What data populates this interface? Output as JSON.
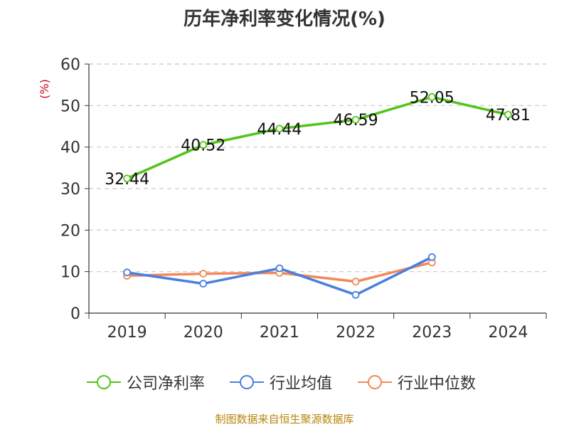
{
  "chart_data": {
    "type": "line",
    "title": "历年净利率变化情况(%)",
    "ylabel": "(%)",
    "xlabel": "",
    "categories": [
      "2019",
      "2020",
      "2021",
      "2022",
      "2023",
      "2024"
    ],
    "ylim": [
      0,
      60
    ],
    "yticks": [
      0,
      10,
      20,
      30,
      40,
      50,
      60
    ],
    "grid": true,
    "legend_position": "bottom",
    "series": [
      {
        "name": "公司净利率",
        "color": "#52c41a",
        "values": [
          32.44,
          40.52,
          44.44,
          46.59,
          52.05,
          47.81
        ],
        "labels": [
          "32.44",
          "40.52",
          "44.44",
          "46.59",
          "52.05",
          "47.81"
        ]
      },
      {
        "name": "行业均值",
        "color": "#4a7fe0",
        "values": [
          9.8,
          7.1,
          10.8,
          4.4,
          13.5,
          null
        ]
      },
      {
        "name": "行业中位数",
        "color": "#f2895a",
        "values": [
          9.0,
          9.5,
          9.7,
          7.6,
          12.2,
          null
        ]
      }
    ]
  },
  "source": "制图数据来自恒生聚源数据库"
}
